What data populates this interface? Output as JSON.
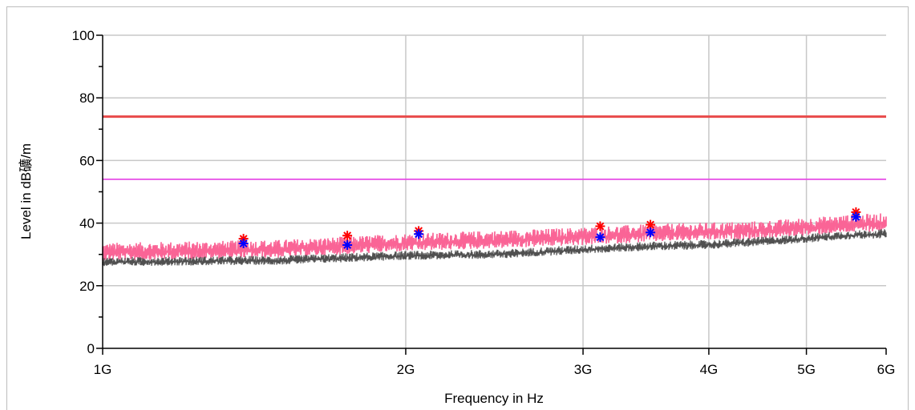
{
  "chart_data": {
    "type": "line",
    "title": "",
    "xlabel": "Frequency in Hz",
    "ylabel": "Level in dB礦/m",
    "x_scale": "log",
    "xlim": [
      1000000000,
      6000000000
    ],
    "ylim": [
      0,
      100
    ],
    "grid": true,
    "x_ticks": [
      {
        "value": 1000000000,
        "label": "1G"
      },
      {
        "value": 2000000000,
        "label": "2G"
      },
      {
        "value": 3000000000,
        "label": "3G"
      },
      {
        "value": 4000000000,
        "label": "4G"
      },
      {
        "value": 5000000000,
        "label": "5G"
      },
      {
        "value": 6000000000,
        "label": "6G"
      }
    ],
    "y_ticks": [
      {
        "value": 0,
        "label": "0"
      },
      {
        "value": 20,
        "label": "20"
      },
      {
        "value": 40,
        "label": "40"
      },
      {
        "value": 60,
        "label": "60"
      },
      {
        "value": 80,
        "label": "80"
      },
      {
        "value": 100,
        "label": "100"
      }
    ],
    "y_minor_ticks": [
      10,
      30,
      50,
      70,
      90
    ],
    "limit_lines": [
      {
        "level": 74,
        "color": "#e84a4a"
      },
      {
        "level": 54,
        "color": "#e64de6"
      }
    ],
    "series": [
      {
        "color": "#fa6496",
        "style": "noisy-band",
        "x": [
          1000000000,
          1500000000,
          2000000000,
          2500000000,
          3000000000,
          3500000000,
          4000000000,
          4500000000,
          5000000000,
          5500000000,
          6000000000
        ],
        "y": [
          30.5,
          31.5,
          33.5,
          34.5,
          35.5,
          36.5,
          37.0,
          37.5,
          38.5,
          39.5,
          40.0
        ]
      },
      {
        "color": "#505050",
        "style": "noisy-line",
        "x": [
          1000000000,
          1500000000,
          2000000000,
          2500000000,
          3000000000,
          3500000000,
          4000000000,
          4500000000,
          5000000000,
          5500000000,
          6000000000
        ],
        "y": [
          27.5,
          28.0,
          29.5,
          30.0,
          31.5,
          32.5,
          33.0,
          34.0,
          35.0,
          36.0,
          36.5
        ]
      }
    ],
    "markers": [
      {
        "color": "#ff0000",
        "points": [
          {
            "x": 1380000000,
            "y": 35.0
          },
          {
            "x": 1750000000,
            "y": 36.0
          },
          {
            "x": 2060000000,
            "y": 37.5
          },
          {
            "x": 3120000000,
            "y": 39.0
          },
          {
            "x": 3500000000,
            "y": 39.5
          },
          {
            "x": 5600000000,
            "y": 43.5
          }
        ]
      },
      {
        "color": "#0000ff",
        "points": [
          {
            "x": 1380000000,
            "y": 33.5
          },
          {
            "x": 1750000000,
            "y": 33.0
          },
          {
            "x": 2060000000,
            "y": 36.5
          },
          {
            "x": 3120000000,
            "y": 35.5
          },
          {
            "x": 3500000000,
            "y": 37.0
          },
          {
            "x": 5600000000,
            "y": 42.0
          }
        ]
      }
    ]
  }
}
